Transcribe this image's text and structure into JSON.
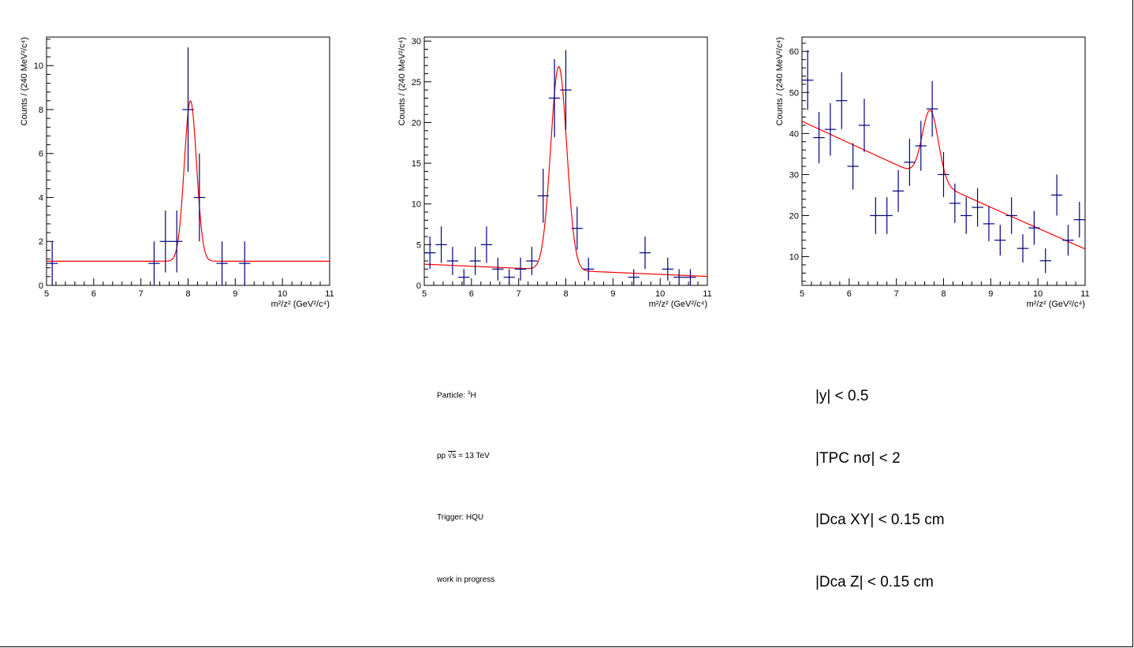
{
  "chart_data": [
    {
      "type": "scatter",
      "xlabel": "m²/z² (GeV²/c⁴)",
      "ylabel": "Counts / (240 MeV²/c⁴)",
      "xlim": [
        5,
        11
      ],
      "ylim": [
        0,
        11.3
      ],
      "xticks": [
        5,
        6,
        7,
        8,
        9,
        10,
        11
      ],
      "yticks": [
        0,
        2,
        4,
        6,
        8,
        10
      ],
      "points": [
        {
          "x": 5.12,
          "y": 1,
          "err": 1
        },
        {
          "x": 7.28,
          "y": 1,
          "err": 1
        },
        {
          "x": 7.52,
          "y": 2,
          "err": 1.41
        },
        {
          "x": 7.76,
          "y": 2,
          "err": 1.41
        },
        {
          "x": 8.0,
          "y": 8,
          "err": 2.83
        },
        {
          "x": 8.24,
          "y": 4,
          "err": 2
        },
        {
          "x": 8.72,
          "y": 1,
          "err": 1
        },
        {
          "x": 9.2,
          "y": 1,
          "err": 1
        }
      ],
      "fit": {
        "color": "#ff0000",
        "background": [
          1.1,
          0
        ],
        "peak_amplitude": 7.3,
        "peak_mean": 8.05,
        "peak_sigma": 0.13
      }
    },
    {
      "type": "scatter",
      "xlabel": "m²/z² (GeV²/c⁴)",
      "ylabel": "Counts / (240 MeV²/c⁴)",
      "xlim": [
        5,
        11
      ],
      "ylim": [
        0,
        30.5
      ],
      "xticks": [
        5,
        6,
        7,
        8,
        9,
        10,
        11
      ],
      "yticks": [
        0,
        5,
        10,
        15,
        20,
        25,
        30
      ],
      "points": [
        {
          "x": 5.12,
          "y": 4,
          "err": 2
        },
        {
          "x": 5.36,
          "y": 5,
          "err": 2.24
        },
        {
          "x": 5.6,
          "y": 3,
          "err": 1.73
        },
        {
          "x": 5.84,
          "y": 1,
          "err": 1
        },
        {
          "x": 6.08,
          "y": 3,
          "err": 1.73
        },
        {
          "x": 6.32,
          "y": 5,
          "err": 2.24
        },
        {
          "x": 6.56,
          "y": 2,
          "err": 1.41
        },
        {
          "x": 6.8,
          "y": 1,
          "err": 1
        },
        {
          "x": 7.04,
          "y": 2,
          "err": 1.41
        },
        {
          "x": 7.28,
          "y": 3,
          "err": 1.73
        },
        {
          "x": 7.52,
          "y": 11,
          "err": 3.32
        },
        {
          "x": 7.76,
          "y": 23,
          "err": 4.8
        },
        {
          "x": 8.0,
          "y": 24,
          "err": 4.9
        },
        {
          "x": 8.24,
          "y": 7,
          "err": 2.65
        },
        {
          "x": 8.48,
          "y": 2,
          "err": 1.41
        },
        {
          "x": 9.44,
          "y": 1,
          "err": 1
        },
        {
          "x": 9.68,
          "y": 4,
          "err": 2
        },
        {
          "x": 10.16,
          "y": 2,
          "err": 1.41
        },
        {
          "x": 10.4,
          "y": 1,
          "err": 1
        },
        {
          "x": 10.64,
          "y": 1,
          "err": 1
        }
      ],
      "fit": {
        "color": "#ff0000",
        "background": [
          2.6,
          -0.25
        ],
        "peak_amplitude": 25,
        "peak_mean": 7.85,
        "peak_sigma": 0.17
      }
    },
    {
      "type": "scatter",
      "xlabel": "m²/z² (GeV²/c⁴)",
      "ylabel": "Counts / (240 MeV²/c⁴)",
      "xlim": [
        5,
        11
      ],
      "ylim": [
        3,
        63.5
      ],
      "xticks": [
        5,
        6,
        7,
        8,
        9,
        10,
        11
      ],
      "yticks": [
        10,
        20,
        30,
        40,
        50,
        60
      ],
      "points": [
        {
          "x": 5.12,
          "y": 53,
          "err": 7.28
        },
        {
          "x": 5.36,
          "y": 39,
          "err": 6.24
        },
        {
          "x": 5.6,
          "y": 41,
          "err": 6.4
        },
        {
          "x": 5.84,
          "y": 48,
          "err": 6.93
        },
        {
          "x": 6.08,
          "y": 32,
          "err": 5.66
        },
        {
          "x": 6.32,
          "y": 42,
          "err": 6.48
        },
        {
          "x": 6.56,
          "y": 20,
          "err": 4.47
        },
        {
          "x": 6.8,
          "y": 20,
          "err": 4.47
        },
        {
          "x": 7.04,
          "y": 26,
          "err": 5.1
        },
        {
          "x": 7.28,
          "y": 33,
          "err": 5.74
        },
        {
          "x": 7.52,
          "y": 37,
          "err": 6.08
        },
        {
          "x": 7.76,
          "y": 46,
          "err": 6.78
        },
        {
          "x": 8.0,
          "y": 30,
          "err": 5.48
        },
        {
          "x": 8.24,
          "y": 23,
          "err": 4.8
        },
        {
          "x": 8.48,
          "y": 20,
          "err": 4.47
        },
        {
          "x": 8.72,
          "y": 22,
          "err": 4.69
        },
        {
          "x": 8.96,
          "y": 18,
          "err": 4.24
        },
        {
          "x": 9.2,
          "y": 14,
          "err": 3.74
        },
        {
          "x": 9.44,
          "y": 20,
          "err": 4.47
        },
        {
          "x": 9.68,
          "y": 12,
          "err": 3.46
        },
        {
          "x": 9.92,
          "y": 17,
          "err": 4.12
        },
        {
          "x": 10.16,
          "y": 9,
          "err": 3
        },
        {
          "x": 10.4,
          "y": 25,
          "err": 5
        },
        {
          "x": 10.64,
          "y": 14,
          "err": 3.74
        },
        {
          "x": 10.88,
          "y": 19,
          "err": 4.36
        }
      ],
      "fit": {
        "color": "#ff0000",
        "background": [
          43,
          -5.35,
          0.027
        ],
        "peak_amplitude": 17,
        "peak_mean": 7.72,
        "peak_sigma": 0.17
      }
    }
  ],
  "info_left": {
    "particle_label": "Particle: ",
    "particle_sup": "3",
    "particle_name": "H",
    "collision_pre": "pp ",
    "collision_sqrt": "√s",
    "collision_post": " = 13 TeV",
    "trigger": "Trigger: HQU",
    "status": "work in progress"
  },
  "info_right": {
    "cut_rapidity": "|y| < 0.5",
    "cut_tpc": "|TPC nσ| < 2",
    "cut_dcaxy": "|Dca XY| < 0.15 cm",
    "cut_dcaz": "|Dca Z| < 0.15 cm"
  },
  "colors": {
    "markers": "#00007f",
    "fit": "#ff0000",
    "axes": "#000000"
  }
}
